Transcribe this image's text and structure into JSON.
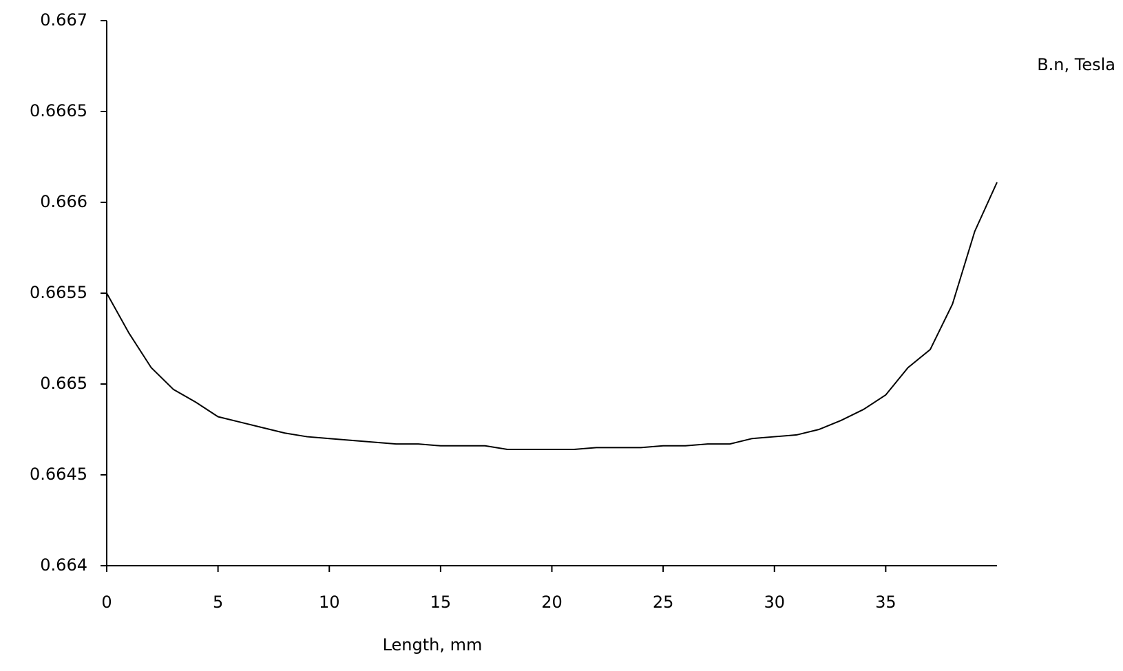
{
  "chart_data": {
    "type": "line",
    "y_label": "B.n, Tesla",
    "x_label": "Length, mm",
    "x": [
      0,
      1,
      2,
      3,
      4,
      5,
      6,
      7,
      8,
      9,
      10,
      11,
      12,
      13,
      14,
      15,
      16,
      17,
      18,
      19,
      20,
      21,
      22,
      23,
      24,
      25,
      26,
      27,
      28,
      29,
      30,
      31,
      32,
      33,
      34,
      35,
      36,
      37,
      38,
      39,
      40
    ],
    "series": [
      {
        "color": "#000000",
        "values": [
          0.6655,
          0.66528,
          0.66509,
          0.66497,
          0.6649,
          0.66482,
          0.66479,
          0.66476,
          0.66473,
          0.66471,
          0.6647,
          0.66469,
          0.66468,
          0.66467,
          0.66467,
          0.66466,
          0.66466,
          0.66466,
          0.66464,
          0.66464,
          0.66464,
          0.66464,
          0.66465,
          0.66465,
          0.66465,
          0.66466,
          0.66466,
          0.66467,
          0.66467,
          0.6647,
          0.66471,
          0.66472,
          0.66475,
          0.6648,
          0.66486,
          0.66494,
          0.66509,
          0.66519,
          0.66544,
          0.66584,
          0.66611
        ]
      }
    ],
    "xlim": [
      0,
      40
    ],
    "xticks": [
      0,
      5,
      10,
      15,
      20,
      25,
      30,
      35
    ],
    "ylim": [
      0.664,
      0.667
    ],
    "yticks": [
      0.664,
      0.6645,
      0.665,
      0.6655,
      0.666,
      0.6665,
      0.667
    ],
    "grid": false
  }
}
